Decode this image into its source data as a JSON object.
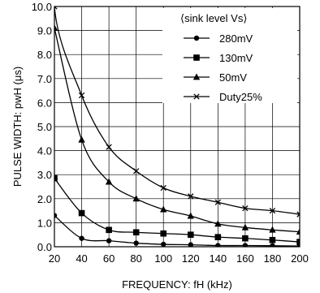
{
  "chart_data": {
    "type": "line",
    "title": "",
    "xlabel": "FREQUENCY: fH (kHz)",
    "ylabel": "PULSE  WIDTH: pwH (μs)",
    "xlim": [
      20,
      200
    ],
    "ylim": [
      0.0,
      10.0
    ],
    "grid": true,
    "x_ticks": [
      20,
      40,
      60,
      80,
      100,
      120,
      140,
      160,
      180,
      200
    ],
    "x_tick_labels": [
      "20",
      "40",
      "60",
      "80",
      "100",
      "120",
      "140",
      "160",
      "180",
      "200"
    ],
    "y_ticks": [
      0,
      1,
      2,
      3,
      4,
      5,
      6,
      7,
      8,
      9,
      10
    ],
    "y_tick_labels": [
      "0.0",
      "1.0",
      "2.0",
      "3.0",
      "4.0",
      "5.0",
      "6.0",
      "7.0",
      "8.0",
      "9.0",
      "10.0"
    ],
    "legend": {
      "title": "⟨sink level Vs⟩",
      "placement": "top-right"
    },
    "x": [
      20,
      40,
      60,
      80,
      100,
      120,
      140,
      160,
      180,
      200
    ],
    "series": [
      {
        "name": "280mV",
        "marker": "circle",
        "values": [
          1.3,
          0.35,
          0.25,
          0.15,
          0.1,
          0.08,
          0.05,
          0.05,
          0.04,
          0.03
        ]
      },
      {
        "name": "130mV",
        "marker": "square",
        "values": [
          2.85,
          1.4,
          0.7,
          0.6,
          0.55,
          0.5,
          0.4,
          0.35,
          0.28,
          0.2
        ]
      },
      {
        "name": "50mV",
        "marker": "triangle",
        "values": [
          9.1,
          4.45,
          2.7,
          2.0,
          1.55,
          1.28,
          0.95,
          0.8,
          0.7,
          0.62
        ]
      },
      {
        "name": "Duty25%",
        "marker": "x",
        "values": [
          10.0,
          6.3,
          4.15,
          3.15,
          2.45,
          2.1,
          1.85,
          1.6,
          1.5,
          1.35
        ]
      }
    ]
  }
}
